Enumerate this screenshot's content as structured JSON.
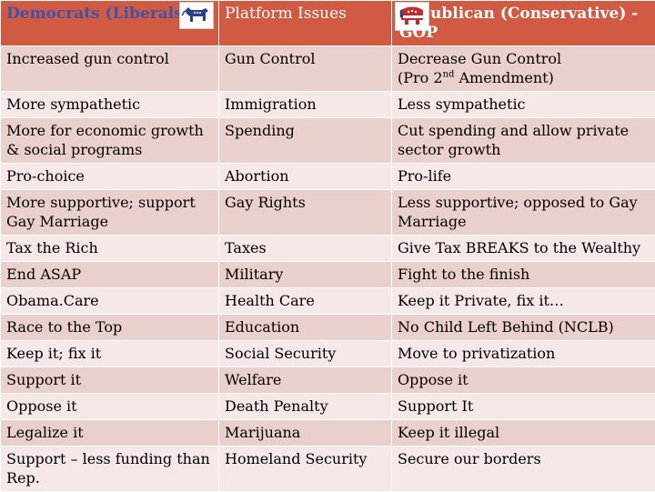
{
  "header": {
    "democrats_label": "Democrats (Liberals",
    "issues_label": "Platform Issues",
    "republican_label": "ublican (Conservative) - GOP"
  },
  "rows": [
    {
      "dem": "Increased gun control",
      "issue": "Gun Control",
      "rep": "Decrease Gun Control",
      "rep_line2_pre": "(Pro 2",
      "rep_line2_sup": "nd",
      "rep_line2_post": " Amendment)"
    },
    {
      "dem": "More sympathetic",
      "issue": "Immigration",
      "rep": "Less sympathetic"
    },
    {
      "dem": "More for economic growth & social programs",
      "issue": "Spending",
      "rep": "Cut spending and allow private sector growth"
    },
    {
      "dem": "Pro-choice",
      "issue": "Abortion",
      "rep": "Pro-life"
    },
    {
      "dem": "More supportive; support Gay Marriage",
      "issue": "Gay Rights",
      "rep": "Less supportive; opposed to Gay Marriage"
    },
    {
      "dem": "Tax the Rich",
      "issue": "Taxes",
      "rep": "Give Tax BREAKS to the Wealthy"
    },
    {
      "dem": "End ASAP",
      "issue": "Military",
      "rep": "Fight to the finish"
    },
    {
      "dem": "Obama.Care",
      "issue": "Health Care",
      "rep": "Keep it Private, fix it…"
    },
    {
      "dem": "Race to the Top",
      "issue": "Education",
      "rep": "No Child Left Behind (NCLB)"
    },
    {
      "dem": "Keep it; fix it",
      "issue": "Social Security",
      "rep": "Move to privatization"
    },
    {
      "dem": "Support it",
      "issue": "Welfare",
      "rep": "Oppose it"
    },
    {
      "dem": "Oppose it",
      "issue": "Death Penalty",
      "rep": "Support It"
    },
    {
      "dem": "Legalize it",
      "issue": "Marijuana",
      "rep": "Keep it illegal"
    },
    {
      "dem": "Support – less funding than Rep.",
      "issue": "Homeland Security",
      "rep": "Secure our borders"
    }
  ],
  "logos": {
    "democrat": "donkey-logo-icon",
    "republican": "elephant-logo-icon"
  },
  "colors": {
    "header_bg": "#d05a42",
    "row_odd_bg": "#ead0cc",
    "row_even_bg": "#f5e8e6",
    "dem_header_text": "#3f54a8"
  }
}
